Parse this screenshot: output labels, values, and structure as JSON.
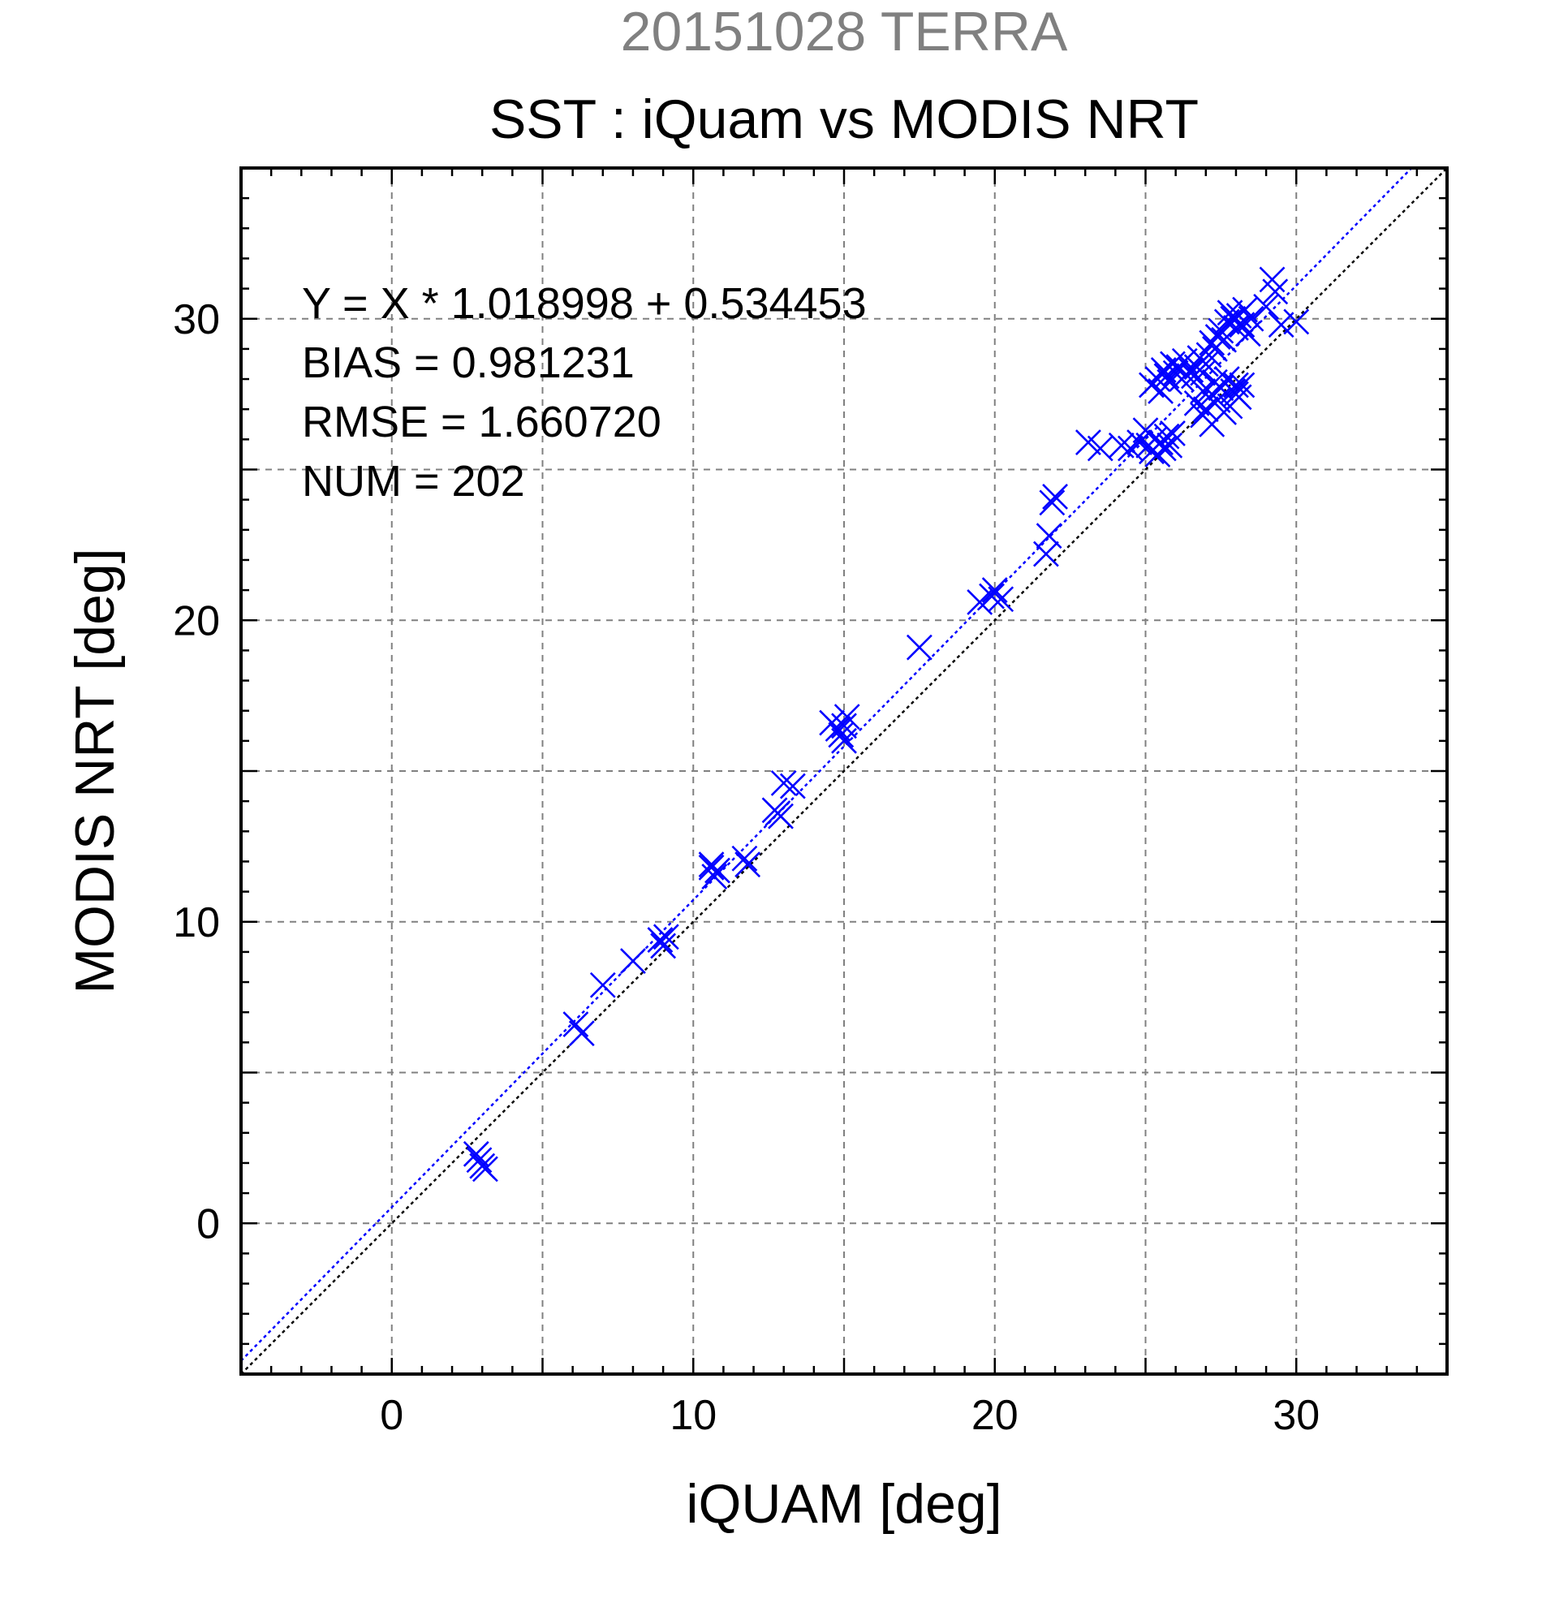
{
  "chart_data": {
    "type": "scatter",
    "title_date": "20151028 TERRA",
    "title": "SST : iQuam vs MODIS NRT",
    "xlabel": "iQUAM [deg]",
    "ylabel": "MODIS NRT [deg]",
    "xlim": [
      -5,
      35
    ],
    "ylim": [
      -5,
      35
    ],
    "xticks": [
      0,
      10,
      20,
      30
    ],
    "yticks": [
      0,
      10,
      20,
      30
    ],
    "x_tick_labels": [
      "0",
      "10",
      "20",
      "30"
    ],
    "y_tick_labels": [
      "0",
      "10",
      "20",
      "30"
    ],
    "grid": true,
    "marker": "x",
    "colors": {
      "points": "#0000ff",
      "fit_line": "#0000ff",
      "reference_line": "#000000",
      "date_title": "#808080"
    },
    "stats": {
      "equation": "Y = X * 1.018998 + 0.534453",
      "bias": "BIAS = 0.981231",
      "rmse": "RMSE = 1.660720",
      "num": "NUM = 202"
    },
    "fit_line": {
      "slope": 1.018998,
      "intercept": 0.534453
    },
    "reference_line": {
      "slope": 1,
      "intercept": 0
    },
    "points": {
      "x": [
        2.8,
        3.0,
        2.9,
        3.1,
        6.1,
        6.3,
        7.0,
        8.0,
        8.9,
        9.0,
        9.1,
        10.6,
        10.7,
        10.8,
        10.6,
        11.7,
        11.8,
        12.8,
        12.9,
        12.7,
        13.0,
        13.3,
        14.6,
        14.8,
        15.0,
        15.1,
        14.9,
        15.0,
        17.5,
        19.5,
        19.9,
        20.0,
        20.2,
        21.7,
        21.8,
        21.9,
        22.0,
        23.1,
        23.5,
        24.2,
        24.5,
        24.8,
        25.0,
        25.1,
        25.2,
        25.3,
        25.4,
        25.5,
        25.6,
        25.7,
        25.8,
        25.9,
        25.2,
        25.4,
        25.5,
        25.6,
        25.7,
        25.8,
        25.9,
        26.0,
        26.1,
        26.2,
        26.3,
        26.5,
        26.6,
        26.7,
        26.8,
        26.9,
        27.0,
        27.1,
        27.2,
        27.3,
        27.4,
        27.5,
        27.6,
        27.7,
        27.8,
        27.9,
        28.0,
        28.1,
        28.2,
        28.3,
        28.4,
        28.5,
        26.9,
        27.0,
        27.2,
        27.4,
        27.6,
        27.8,
        28.0,
        28.1,
        28.2,
        26.7,
        26.9,
        27.1,
        27.3,
        27.5,
        27.7,
        27.9,
        28.0,
        29.0,
        29.2,
        29.3,
        29.5,
        30.0
      ],
      "y": [
        2.3,
        1.9,
        2.1,
        1.8,
        6.6,
        6.3,
        7.9,
        8.7,
        9.4,
        9.2,
        9.5,
        11.8,
        11.5,
        11.7,
        11.9,
        12.1,
        11.9,
        13.6,
        13.5,
        13.7,
        14.6,
        14.5,
        16.6,
        16.4,
        16.0,
        16.8,
        16.2,
        16.5,
        19.1,
        20.6,
        20.8,
        21.0,
        20.7,
        22.2,
        22.8,
        23.9,
        24.1,
        25.9,
        25.7,
        25.8,
        25.7,
        25.9,
        26.3,
        25.8,
        25.6,
        26.0,
        25.5,
        25.9,
        25.7,
        26.1,
        25.8,
        26.2,
        27.8,
        28.0,
        27.6,
        28.3,
        28.1,
        27.9,
        28.5,
        28.2,
        28.4,
        28.0,
        28.6,
        28.3,
        28.1,
        28.4,
        28.7,
        28.2,
        28.5,
        28.8,
        29.2,
        29.0,
        29.4,
        29.6,
        29.3,
        29.9,
        30.2,
        30.0,
        29.7,
        30.1,
        29.8,
        30.3,
        29.5,
        30.0,
        26.8,
        27.0,
        26.5,
        27.3,
        26.9,
        27.1,
        27.5,
        27.4,
        27.8,
        27.2,
        27.6,
        27.4,
        27.9,
        27.7,
        28.0,
        27.6,
        27.8,
        30.4,
        31.3,
        30.9,
        29.8,
        29.9
      ]
    }
  }
}
